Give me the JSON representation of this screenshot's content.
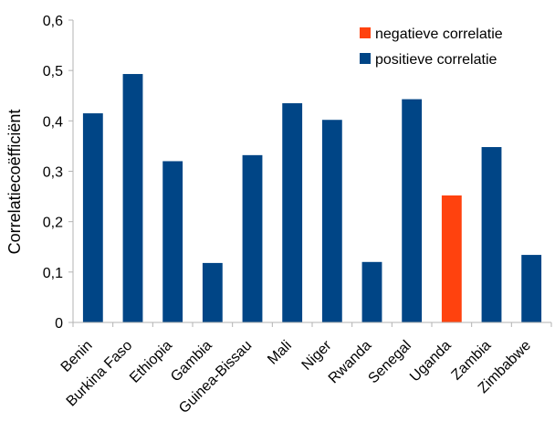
{
  "chart_data": {
    "type": "bar",
    "title": "",
    "xlabel": "",
    "ylabel": "Correlatiecoëfficiënt",
    "ylim": [
      0,
      0.6
    ],
    "yticks": [
      "0",
      "0,1",
      "0,2",
      "0,3",
      "0,4",
      "0,5",
      "0,6"
    ],
    "grid": false,
    "legend_position": "top-right",
    "categories": [
      "Benin",
      "Burkina Faso",
      "Ethiopia",
      "Gambia",
      "Guinea-Bissau",
      "Mali",
      "Niger",
      "Rwanda",
      "Senegal",
      "Uganda",
      "Zambia",
      "Zimbabwe"
    ],
    "values": [
      0.415,
      0.493,
      0.32,
      0.118,
      0.332,
      0.435,
      0.402,
      0.12,
      0.443,
      0.252,
      0.348,
      0.134
    ],
    "bar_series": [
      "positieve correlatie",
      "positieve correlatie",
      "positieve correlatie",
      "positieve correlatie",
      "positieve correlatie",
      "positieve correlatie",
      "positieve correlatie",
      "positieve correlatie",
      "positieve correlatie",
      "negatieve correlatie",
      "positieve correlatie",
      "positieve correlatie"
    ],
    "series": [
      {
        "name": "negatieve correlatie",
        "color": "#ff420e"
      },
      {
        "name": "positieve correlatie",
        "color": "#004586"
      }
    ]
  }
}
